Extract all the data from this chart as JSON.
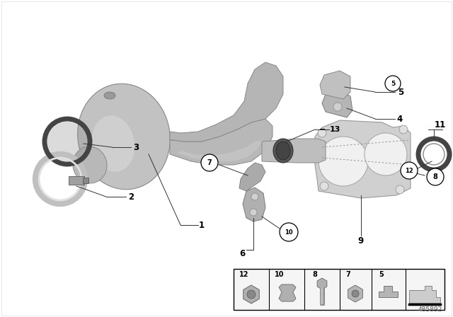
{
  "bg_color": "#ffffff",
  "part_number": "485892",
  "line_color": "#333333",
  "label_color": "#000000",
  "grey_light": "#c8c8c8",
  "grey_mid": "#a8a8a8",
  "grey_dark": "#888888",
  "grey_very_light": "#e0e0e0",
  "gasket_color": "#cccccc",
  "pipe_color": "#b5b5b5",
  "converter_color": "#b0b0b0",
  "clamp_color": "#aaaaaa",
  "ring_color": "#666666"
}
